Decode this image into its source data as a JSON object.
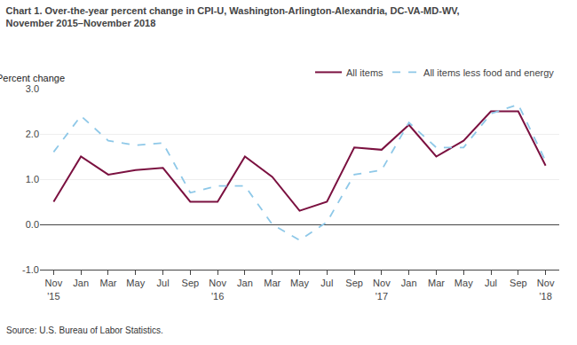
{
  "chart_data": {
    "type": "line",
    "title": "Chart 1. Over-the-year percent change in CPI-U, Washington-Arlington-Alexandria, DC-VA-MD-WV,\nNovember 2015–November 2018",
    "y_label": "Percent change",
    "annotations": [
      "Source: U.S. Bureau of Labor Statistics."
    ],
    "categories": [
      "Nov\n'15",
      "Jan",
      "Mar",
      "May",
      "Jul",
      "Sep",
      "Nov\n'16",
      "Jan",
      "Mar",
      "May",
      "Jul",
      "Sep",
      "Nov\n'17",
      "Jan",
      "Mar",
      "May",
      "Jul",
      "Sep",
      "Nov\n'18"
    ],
    "series": [
      {
        "name": "All items",
        "color": "#7b1140",
        "line_style": "solid",
        "values": [
          0.5,
          1.5,
          1.1,
          1.2,
          1.25,
          0.5,
          0.5,
          1.5,
          1.05,
          0.3,
          0.5,
          1.7,
          1.65,
          2.2,
          1.5,
          1.85,
          2.5,
          2.5,
          1.3
        ]
      },
      {
        "name": "All items less food and energy",
        "color": "#8ec8e8",
        "line_style": "dashed",
        "values": [
          1.6,
          2.4,
          1.85,
          1.75,
          1.8,
          0.7,
          0.85,
          0.85,
          0.0,
          -0.35,
          0.05,
          1.1,
          1.2,
          2.25,
          1.7,
          1.7,
          2.45,
          2.65,
          1.4
        ]
      }
    ],
    "ylim": [
      -1.0,
      3.0
    ],
    "yticks": [
      {
        "value": -1.0,
        "label": "-1.0"
      },
      {
        "value": 0.0,
        "label": "0.0"
      },
      {
        "value": 1.0,
        "label": "1.0"
      },
      {
        "value": 2.0,
        "label": "2.0"
      },
      {
        "value": 3.0,
        "label": "3.0"
      }
    ],
    "grid": true,
    "legend": "upper right"
  }
}
